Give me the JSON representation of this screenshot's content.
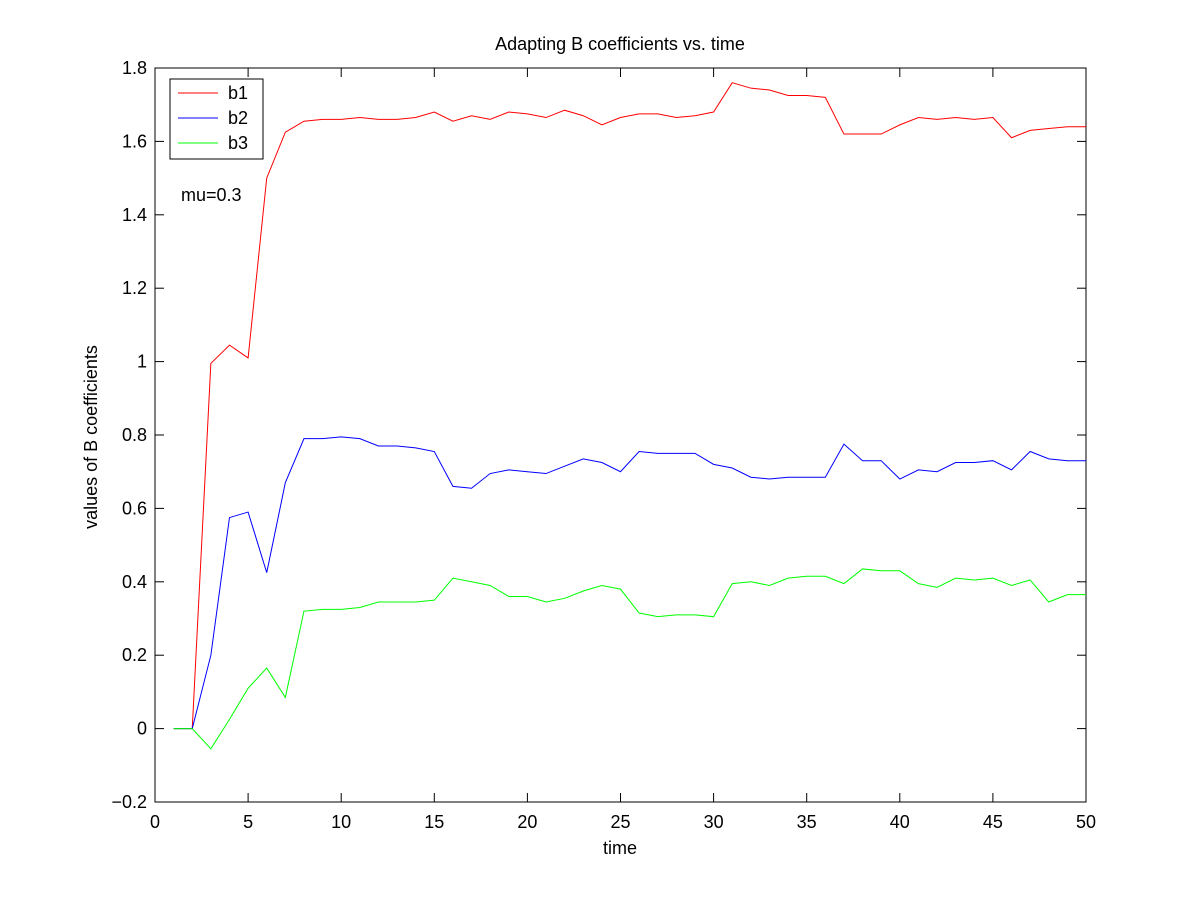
{
  "chart_data": {
    "type": "line",
    "title": "Adapting B coefficients vs. time",
    "xlabel": "time",
    "ylabel": "values of B coefficients",
    "xlim": [
      0,
      50
    ],
    "ylim": [
      -0.2,
      1.8
    ],
    "xticks": [
      "0",
      "5",
      "10",
      "15",
      "20",
      "25",
      "30",
      "35",
      "40",
      "45",
      "50"
    ],
    "yticks": [
      "−0.2",
      "0",
      "0.2",
      "0.4",
      "0.6",
      "0.8",
      "1",
      "1.2",
      "1.4",
      "1.6",
      "1.8"
    ],
    "grid": false,
    "legend_position": "top-left",
    "annotation": "mu=0.3",
    "x": [
      1,
      2,
      3,
      4,
      5,
      6,
      7,
      8,
      9,
      10,
      11,
      12,
      13,
      14,
      15,
      16,
      17,
      18,
      19,
      20,
      21,
      22,
      23,
      24,
      25,
      26,
      27,
      28,
      29,
      30,
      31,
      32,
      33,
      34,
      35,
      36,
      37,
      38,
      39,
      40,
      41,
      42,
      43,
      44,
      45,
      46,
      47,
      48,
      49,
      50
    ],
    "series": [
      {
        "name": "b1",
        "color": "#ff0000",
        "values": [
          0,
          0,
          0.995,
          1.045,
          1.01,
          1.5,
          1.625,
          1.655,
          1.66,
          1.66,
          1.665,
          1.66,
          1.66,
          1.665,
          1.68,
          1.655,
          1.67,
          1.66,
          1.68,
          1.675,
          1.665,
          1.685,
          1.67,
          1.645,
          1.665,
          1.675,
          1.675,
          1.665,
          1.67,
          1.68,
          1.76,
          1.745,
          1.74,
          1.725,
          1.725,
          1.72,
          1.62,
          1.62,
          1.62,
          1.645,
          1.665,
          1.66,
          1.665,
          1.66,
          1.665,
          1.61,
          1.63,
          1.635,
          1.64,
          1.64
        ]
      },
      {
        "name": "b2",
        "color": "#0000ff",
        "values": [
          0,
          0,
          0.2,
          0.575,
          0.59,
          0.425,
          0.67,
          0.79,
          0.79,
          0.795,
          0.79,
          0.77,
          0.77,
          0.765,
          0.755,
          0.66,
          0.655,
          0.695,
          0.705,
          0.7,
          0.695,
          0.715,
          0.735,
          0.725,
          0.7,
          0.755,
          0.75,
          0.75,
          0.75,
          0.72,
          0.71,
          0.685,
          0.68,
          0.685,
          0.685,
          0.685,
          0.775,
          0.73,
          0.73,
          0.68,
          0.705,
          0.7,
          0.725,
          0.725,
          0.73,
          0.705,
          0.755,
          0.735,
          0.73,
          0.73
        ]
      },
      {
        "name": "b3",
        "color": "#00ff00",
        "values": [
          0,
          0,
          -0.055,
          0.025,
          0.11,
          0.165,
          0.085,
          0.32,
          0.325,
          0.325,
          0.33,
          0.345,
          0.345,
          0.345,
          0.35,
          0.41,
          0.4,
          0.39,
          0.36,
          0.36,
          0.345,
          0.355,
          0.375,
          0.39,
          0.38,
          0.315,
          0.305,
          0.31,
          0.31,
          0.305,
          0.395,
          0.4,
          0.39,
          0.41,
          0.415,
          0.415,
          0.395,
          0.435,
          0.43,
          0.43,
          0.395,
          0.385,
          0.41,
          0.405,
          0.41,
          0.39,
          0.405,
          0.345,
          0.365,
          0.365
        ]
      }
    ]
  }
}
